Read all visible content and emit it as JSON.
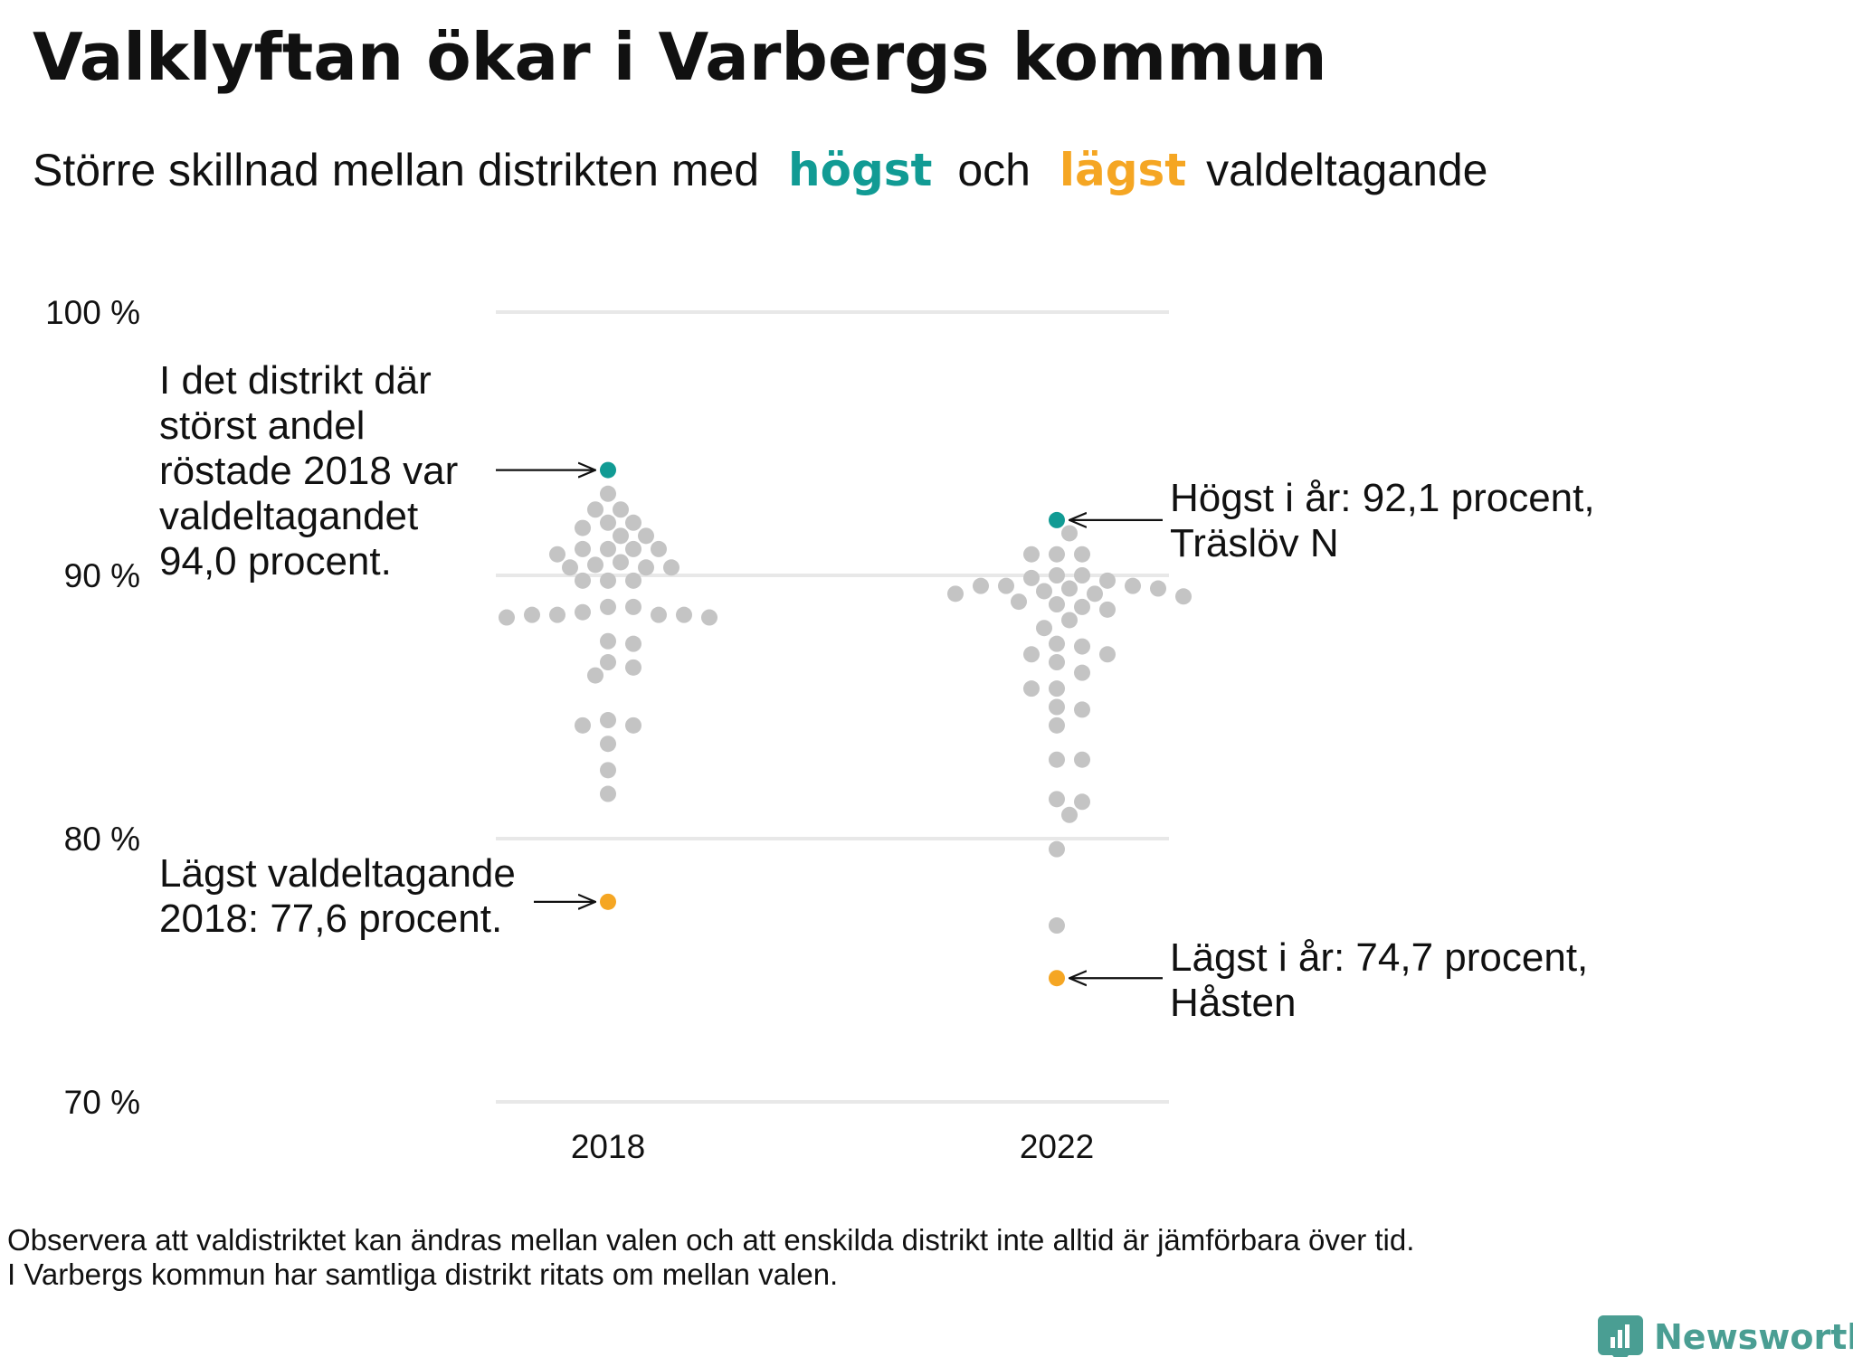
{
  "title": "Valklyftan ökar i Varbergs kommun",
  "subtitle": {
    "part1": "Större  skillnad  mellan  distrikten   med",
    "high_word": "högst",
    "middle": "och",
    "low_word": "lägst",
    "part2": "valdeltagande"
  },
  "colors": {
    "high": "#119b94",
    "low": "#f5a623",
    "other": "#c4c4c4",
    "brand": "#4a9e93"
  },
  "chart_data": {
    "type": "scatter",
    "categories": [
      "2018",
      "2022"
    ],
    "y_ticks": [
      {
        "value": 100,
        "label": "100 %"
      },
      {
        "value": 90,
        "label": "90 %"
      },
      {
        "value": 80,
        "label": "80 %"
      },
      {
        "value": 70,
        "label": "70 %"
      }
    ],
    "ylim": [
      70,
      100
    ],
    "grid": true,
    "series": [
      {
        "category": "2018",
        "highest": 94.0,
        "lowest": 77.6,
        "values": [
          93.1,
          92.5,
          92.5,
          92.0,
          92.0,
          91.8,
          91.5,
          91.5,
          91.0,
          91.0,
          91.0,
          91.0,
          90.8,
          90.5,
          90.4,
          90.3,
          90.3,
          90.3,
          89.8,
          89.8,
          89.8,
          88.8,
          88.8,
          88.6,
          88.5,
          88.5,
          88.5,
          88.5,
          88.4,
          88.4,
          87.5,
          87.4,
          86.7,
          86.5,
          86.2,
          84.5,
          84.3,
          84.3,
          83.6,
          82.6,
          81.7
        ]
      },
      {
        "category": "2022",
        "highest": 92.1,
        "lowest": 74.7,
        "values": [
          91.6,
          90.8,
          90.8,
          90.8,
          90.0,
          90.0,
          89.9,
          89.8,
          89.6,
          89.6,
          89.6,
          89.5,
          89.5,
          89.4,
          89.3,
          89.3,
          89.2,
          89.0,
          88.9,
          88.8,
          88.7,
          88.3,
          88.0,
          87.4,
          87.3,
          87.0,
          87.0,
          86.7,
          86.3,
          85.7,
          85.7,
          85.0,
          84.9,
          84.3,
          83.0,
          83.0,
          81.5,
          81.4,
          80.9,
          79.6,
          76.7
        ]
      }
    ],
    "annotations": {
      "high_2018": [
        "I det distrikt där",
        "störst andel",
        "röstade 2018 var",
        "valdeltagandet",
        "94,0 procent."
      ],
      "low_2018": [
        "Lägst valdeltagande",
        "2018: 77,6 procent."
      ],
      "high_2022": [
        "Högst i år: 92,1 procent,",
        "Träslöv N"
      ],
      "low_2022": [
        "Lägst i år: 74,7 procent,",
        "Håsten"
      ]
    }
  },
  "footnote": [
    "Observera att valdistriktet kan ändras mellan valen och att enskilda distrikt inte alltid är jämförbara över tid.",
    "I Varbergs kommun har samtliga distrikt ritats om mellan valen."
  ],
  "brand": {
    "name": "Newsworthy",
    "icon": "bar-chart-pin-icon"
  }
}
